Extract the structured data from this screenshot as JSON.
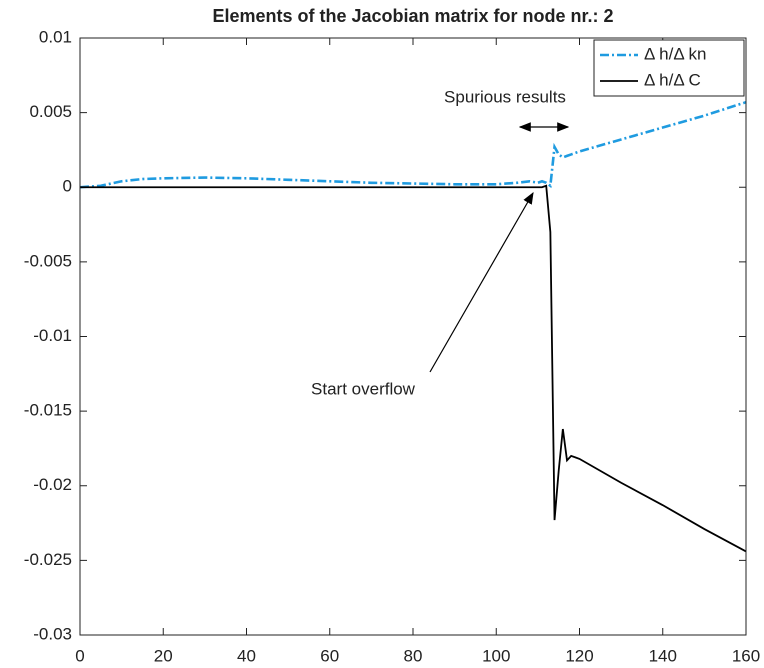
{
  "chart_data": {
    "type": "line",
    "title": "Elements of the Jacobian matrix for node nr.: 2",
    "x": [
      0,
      5,
      10,
      15,
      20,
      30,
      40,
      50,
      60,
      70,
      80,
      90,
      100,
      105,
      108,
      110,
      111,
      112,
      113,
      114,
      115,
      116,
      117,
      118,
      119,
      120,
      130,
      140,
      150,
      160
    ],
    "series": [
      {
        "name": "Δ h/Δ kn",
        "color": "#1f9be0",
        "style": "dashdot",
        "values": [
          0,
          0.0001,
          0.0004,
          0.00055,
          0.0006,
          0.00065,
          0.0006,
          0.0005,
          0.0004,
          0.0003,
          0.00025,
          0.0002,
          0.0002,
          0.0003,
          0.0004,
          0.0003,
          0.0004,
          0.0003,
          0.0001,
          0.0027,
          0.0022,
          0.002,
          0.0021,
          0.0022,
          0.0023,
          0.0024,
          0.0032,
          0.004,
          0.0048,
          0.0057
        ]
      },
      {
        "name": "Δ h/Δ C",
        "color": "#000000",
        "style": "solid",
        "values": [
          0,
          0,
          0,
          0,
          0,
          0,
          0,
          0,
          0,
          0,
          0,
          0,
          0,
          0,
          0,
          0,
          0,
          0.0001,
          -0.003,
          -0.0223,
          -0.019,
          -0.0162,
          -0.0183,
          -0.018,
          -0.0181,
          -0.0182,
          -0.0198,
          -0.0213,
          -0.0229,
          -0.0244
        ]
      }
    ],
    "xlim": [
      0,
      160
    ],
    "xticks": [
      0,
      20,
      40,
      60,
      80,
      100,
      120,
      140,
      160
    ],
    "ylim": [
      -0.03,
      0.01
    ],
    "yticks": [
      0.01,
      0.005,
      0,
      -0.005,
      -0.01,
      -0.015,
      -0.02,
      -0.025,
      -0.03
    ],
    "legend": "northeast",
    "annotations": [
      "Spurious results",
      "Start overflow"
    ]
  }
}
